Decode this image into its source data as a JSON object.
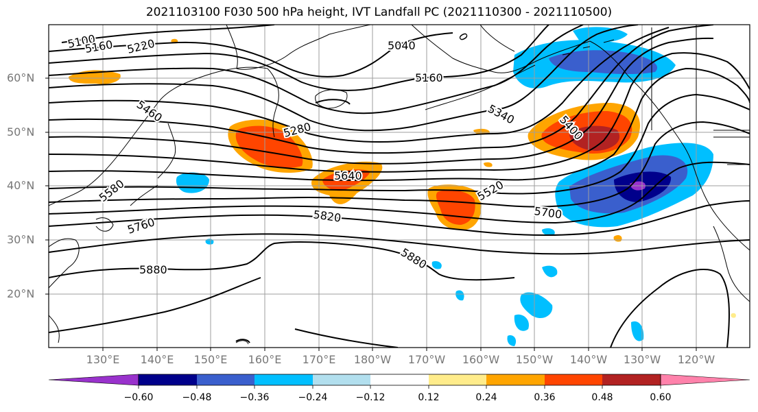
{
  "title": "2021103100 F030 500 hPa height, IVT Landfall PC (2021110300 - 2021110500)",
  "lat_labels": [
    "60°N",
    "50°N",
    "40°N",
    "30°N",
    "20°N"
  ],
  "lon_labels": [
    "130°E",
    "140°E",
    "150°E",
    "160°E",
    "170°E",
    "180°W",
    "170°W",
    "160°W",
    "150°W",
    "140°W",
    "130°W",
    "120°W"
  ],
  "contour_labels": [
    "5100",
    "5160",
    "5220",
    "5040",
    "5160",
    "5460",
    "5340",
    "5280",
    "5400",
    "5640",
    "5520",
    "5580",
    "5760",
    "5820",
    "5700",
    "5880",
    "5880",
    "0"
  ],
  "colorbar": {
    "colors": [
      "#9932cc",
      "#00008b",
      "#3a5fcd",
      "#00bfff",
      "#b2dfee",
      "#ffffff",
      "#ffec8b",
      "#ffa500",
      "#ff4500",
      "#b22222",
      "#ff82ab"
    ],
    "tick_labels": [
      "−0.60",
      "−0.48",
      "−0.36",
      "−0.24",
      "−0.12",
      "0.12",
      "0.24",
      "0.36",
      "0.48",
      "0.60"
    ]
  }
}
